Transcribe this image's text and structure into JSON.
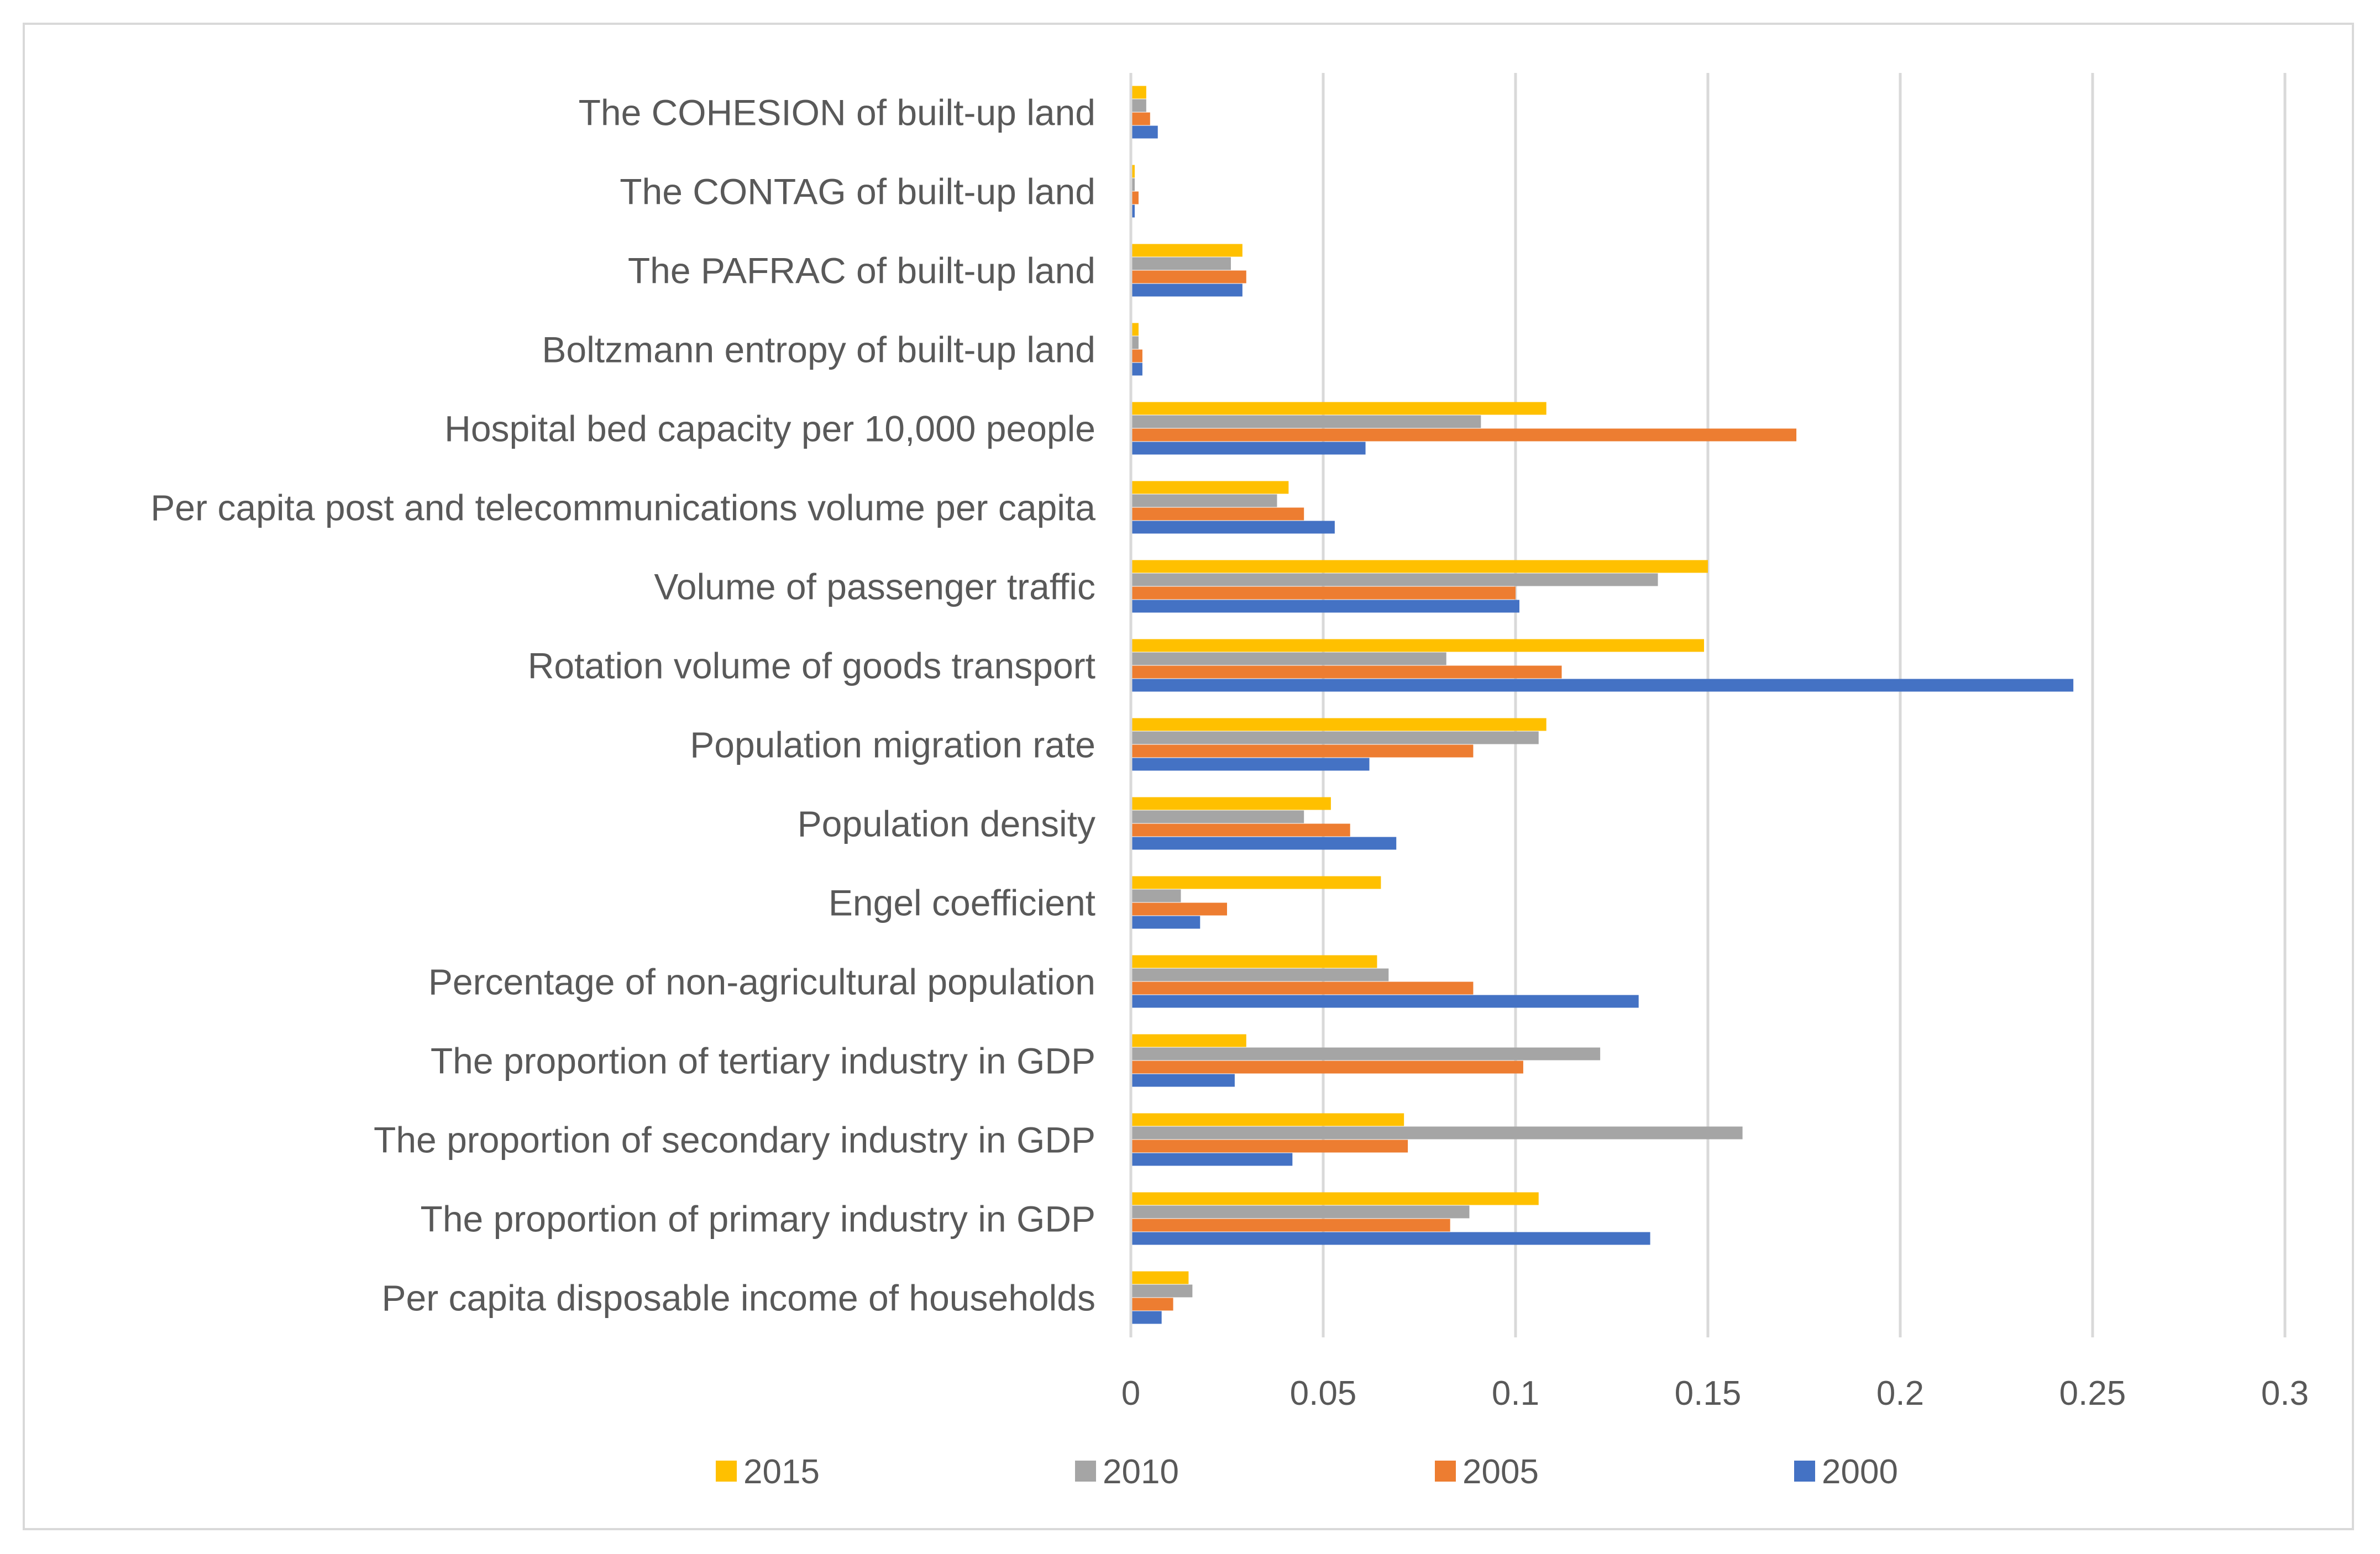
{
  "chart_data": {
    "type": "bar",
    "orientation": "horizontal",
    "title": "",
    "xlabel": "",
    "ylabel": "",
    "xlim": [
      0,
      0.3
    ],
    "x_ticks": [
      0,
      0.05,
      0.1,
      0.15,
      0.2,
      0.25,
      0.3
    ],
    "x_tick_labels": [
      "0",
      "0.05",
      "0.1",
      "0.15",
      "0.2",
      "0.25",
      "0.3"
    ],
    "grid": "vertical",
    "legend_position": "bottom",
    "categories": [
      "The COHESION of built-up land",
      "The CONTAG of built-up land",
      "The PAFRAC of built-up land",
      "Boltzmann entropy of built-up land",
      "Hospital bed capacity per 10,000 people",
      "Per capita post and telecommunications volume per capita",
      "Volume of passenger traffic",
      "Rotation volume of goods transport",
      "Population migration rate",
      "Population density",
      "Engel coefficient",
      "Percentage of non-agricultural population",
      "The proportion of tertiary industry in GDP",
      "The proportion of secondary industry in GDP",
      "The proportion of primary industry in GDP",
      "Per capita disposable income of households"
    ],
    "series": [
      {
        "name": "2015",
        "color": "#FFC000",
        "values": [
          0.004,
          0.001,
          0.029,
          0.002,
          0.108,
          0.041,
          0.15,
          0.149,
          0.108,
          0.052,
          0.065,
          0.064,
          0.03,
          0.071,
          0.106,
          0.015
        ]
      },
      {
        "name": "2010",
        "color": "#A5A5A5",
        "values": [
          0.004,
          0.001,
          0.026,
          0.002,
          0.091,
          0.038,
          0.137,
          0.082,
          0.106,
          0.045,
          0.013,
          0.067,
          0.122,
          0.159,
          0.088,
          0.016
        ]
      },
      {
        "name": "2005",
        "color": "#ED7D31",
        "values": [
          0.005,
          0.002,
          0.03,
          0.003,
          0.173,
          0.045,
          0.1,
          0.112,
          0.089,
          0.057,
          0.025,
          0.089,
          0.102,
          0.072,
          0.083,
          0.011
        ]
      },
      {
        "name": "2000",
        "color": "#4472C4",
        "values": [
          0.007,
          0.001,
          0.029,
          0.003,
          0.061,
          0.053,
          0.101,
          0.245,
          0.062,
          0.069,
          0.018,
          0.132,
          0.027,
          0.042,
          0.135,
          0.008
        ]
      }
    ]
  }
}
